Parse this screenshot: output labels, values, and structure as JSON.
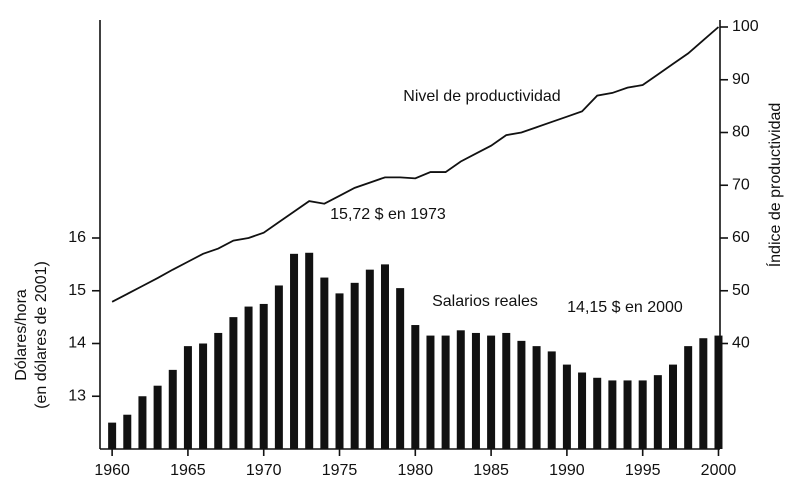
{
  "chart_data": {
    "type": "bar+line",
    "ylabel": [
      "Dólares/hora",
      "(en dólares de 2001)"
    ],
    "y2label": "Índice de productividad",
    "x": [
      1960,
      1961,
      1962,
      1963,
      1964,
      1965,
      1966,
      1967,
      1968,
      1969,
      1970,
      1971,
      1972,
      1973,
      1974,
      1975,
      1976,
      1977,
      1978,
      1979,
      1980,
      1981,
      1982,
      1983,
      1984,
      1985,
      1986,
      1987,
      1988,
      1989,
      1990,
      1991,
      1992,
      1993,
      1994,
      1995,
      1996,
      1997,
      1998,
      1999,
      2000
    ],
    "xlim": [
      1959.2,
      2000.1
    ],
    "xticks": [
      1960,
      1965,
      1970,
      1975,
      1980,
      1985,
      1990,
      1995,
      2000
    ],
    "ylim": [
      12,
      20
    ],
    "yticks": [
      13,
      14,
      15,
      16
    ],
    "y2lim": [
      20,
      100
    ],
    "y2ticks": [
      40,
      50,
      60,
      70,
      80,
      90,
      100
    ],
    "series": [
      {
        "name": "Salarios reales",
        "type": "bar",
        "color": "#111111",
        "axis": "y",
        "values": [
          12.5,
          12.65,
          13.0,
          13.2,
          13.5,
          13.95,
          14.0,
          14.2,
          14.5,
          14.7,
          14.75,
          15.1,
          15.7,
          15.72,
          15.25,
          14.95,
          15.15,
          15.4,
          15.5,
          15.05,
          14.35,
          14.15,
          14.15,
          14.25,
          14.2,
          14.15,
          14.2,
          14.05,
          13.95,
          13.85,
          13.6,
          13.45,
          13.35,
          13.3,
          13.3,
          13.3,
          13.4,
          13.6,
          13.95,
          14.1,
          14.15
        ]
      },
      {
        "name": "Nivel de productividad",
        "type": "line",
        "color": "#111111",
        "axis": "y2",
        "values": [
          47.9,
          49.4,
          50.9,
          52.4,
          54,
          55.5,
          57,
          58,
          59.5,
          60,
          61,
          63,
          65,
          67,
          66.5,
          68,
          69.5,
          70.5,
          71.5,
          71.5,
          71.3,
          72.5,
          72.5,
          74.5,
          76,
          77.5,
          79.5,
          80,
          81,
          82,
          83,
          84,
          87,
          87.5,
          88.5,
          89,
          91,
          93,
          95,
          97.5,
          100
        ]
      }
    ],
    "annotations": [
      "15,72 $ en 1973",
      "14,15 $ en 2000"
    ]
  }
}
